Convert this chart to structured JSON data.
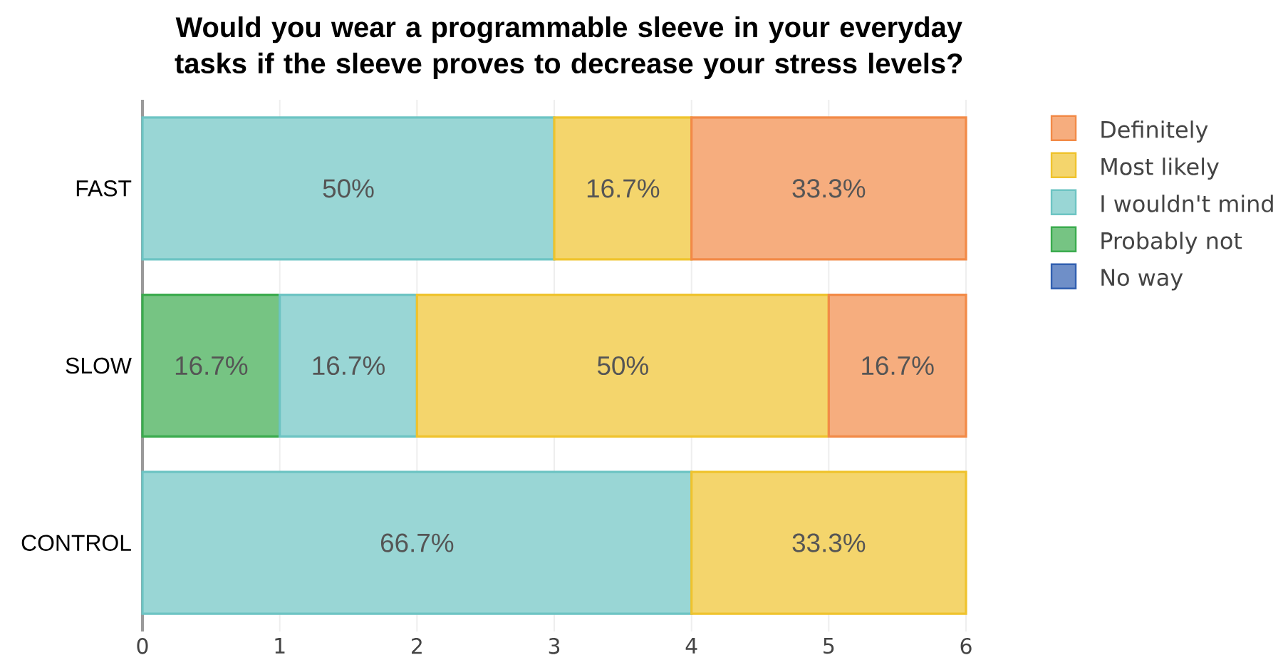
{
  "chart_data": {
    "type": "bar",
    "orientation": "horizontal",
    "stacked": true,
    "title": "Would you wear a programmable sleeve in your everyday tasks if the sleeve proves to decrease your stress levels?",
    "categories": [
      "FAST",
      "SLOW",
      "CONTROL"
    ],
    "series": [
      {
        "name": "No way",
        "color": "#6f8fc8",
        "values": [
          0,
          0,
          0
        ]
      },
      {
        "name": "Probably not",
        "color": "#76c483",
        "values": [
          0,
          1,
          0
        ]
      },
      {
        "name": "I wouldn't mind",
        "color": "#99d6d5",
        "values": [
          3,
          1,
          4
        ]
      },
      {
        "name": "Most likely",
        "color": "#f4d56c",
        "values": [
          1,
          3,
          2
        ]
      },
      {
        "name": "Definitely",
        "color": "#f6ad7e",
        "values": [
          2,
          1,
          0
        ]
      }
    ],
    "annotations": [
      {
        "text": "50%",
        "x": 1.5,
        "y": "FAST"
      },
      {
        "text": "16.7%",
        "x": 3.5,
        "y": "FAST"
      },
      {
        "text": "33.3%",
        "x": 5,
        "y": "FAST"
      },
      {
        "text": "16.7%",
        "x": 0.5,
        "y": "SLOW"
      },
      {
        "text": "16.7%",
        "x": 1.5,
        "y": "SLOW"
      },
      {
        "text": "50%",
        "x": 3.5,
        "y": "SLOW"
      },
      {
        "text": "16.7%",
        "x": 5.5,
        "y": "SLOW"
      },
      {
        "text": "66.7%",
        "x": 2,
        "y": "CONTROL"
      },
      {
        "text": "33.3%",
        "x": 5,
        "y": "CONTROL"
      }
    ],
    "xlim": [
      0,
      6
    ],
    "xticks": [
      0,
      1,
      2,
      3,
      4,
      5,
      6
    ],
    "grid": "x",
    "legend": "top right"
  }
}
